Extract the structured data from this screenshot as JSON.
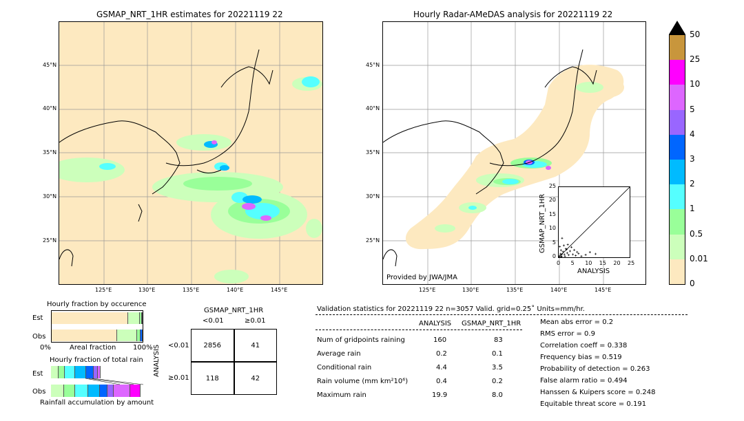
{
  "left_map": {
    "title": "GSMAP_NRT_1HR estimates for 20221119 22",
    "lat_ticks": [
      "45°N",
      "40°N",
      "35°N",
      "30°N",
      "25°N"
    ],
    "lon_ticks": [
      "125°E",
      "130°E",
      "135°E",
      "140°E",
      "145°E"
    ]
  },
  "right_map": {
    "title": "Hourly Radar-AMeDAS analysis for 20221119 22",
    "lat_ticks": [
      "45°N",
      "40°N",
      "35°N",
      "30°N",
      "25°N"
    ],
    "lon_ticks": [
      "125°E",
      "130°E",
      "135°E",
      "140°E",
      "145°E"
    ],
    "credit": "Provided by JWA/JMA"
  },
  "colorbar": {
    "labels": [
      "50",
      "25",
      "10",
      "5",
      "4",
      "3",
      "2",
      "1",
      "0.5",
      "0.01",
      "0"
    ],
    "colors": [
      "#c8963c",
      "#ff00ff",
      "#dd66ff",
      "#9966ff",
      "#0066ff",
      "#00bbff",
      "#55ffff",
      "#99ff99",
      "#ccffbb",
      "#fde9c0"
    ]
  },
  "scatter_inset": {
    "xlabel": "ANALYSIS",
    "ylabel": "GSMAP_NRT_1HR",
    "x_ticks": [
      "0",
      "5",
      "10",
      "15",
      "20",
      "25"
    ],
    "y_ticks": [
      "0",
      "5",
      "10",
      "15",
      "20",
      "25"
    ]
  },
  "chart_data": [
    {
      "type": "scatter",
      "xlabel": "ANALYSIS",
      "ylabel": "GSMAP_NRT_1HR",
      "xlim": [
        0,
        25
      ],
      "ylim": [
        0,
        25
      ],
      "points": [
        [
          0.3,
          0.5
        ],
        [
          0.6,
          1.2
        ],
        [
          1.0,
          0.4
        ],
        [
          1.5,
          2.0
        ],
        [
          2.0,
          1.0
        ],
        [
          2.5,
          3.0
        ],
        [
          0.8,
          2.5
        ],
        [
          1.2,
          6.8
        ],
        [
          3.0,
          1.5
        ],
        [
          3.5,
          0.8
        ],
        [
          4.0,
          2.2
        ],
        [
          5.0,
          1.0
        ],
        [
          6.0,
          0.6
        ],
        [
          0.4,
          3.8
        ],
        [
          1.8,
          4.2
        ],
        [
          7.0,
          1.3
        ],
        [
          8.0,
          0.4
        ],
        [
          9.5,
          0.9
        ],
        [
          2.8,
          2.8
        ],
        [
          4.5,
          3.6
        ],
        [
          1.1,
          1.1
        ],
        [
          0.2,
          0.2
        ],
        [
          3.2,
          4.5
        ],
        [
          11.0,
          1.8
        ],
        [
          13.0,
          1.2
        ],
        [
          5.5,
          2.6
        ],
        [
          6.5,
          1.9
        ],
        [
          0.9,
          0.1
        ],
        [
          2.2,
          0.3
        ]
      ]
    },
    {
      "type": "bar",
      "title": "Hourly fraction by occurence",
      "categories": [
        "Est",
        "Obs"
      ],
      "xlabel": "Areal fraction",
      "x_ticks": [
        "0%",
        "100%"
      ],
      "series": [
        {
          "values": [
            0.84,
            0.72
          ]
        },
        {
          "values": [
            0.13,
            0.22
          ]
        },
        {
          "values": [
            0.02,
            0.04
          ]
        },
        {
          "values": [
            0.01,
            0.02
          ]
        }
      ]
    },
    {
      "type": "bar",
      "title": "Hourly fraction of total rain",
      "categories": [
        "Est",
        "Obs"
      ],
      "xlabel": "Rainfall accumulation by amount",
      "series": [
        {
          "values": [
            0.08,
            0.14
          ]
        },
        {
          "values": [
            0.07,
            0.12
          ]
        },
        {
          "values": [
            0.11,
            0.14
          ]
        },
        {
          "values": [
            0.12,
            0.13
          ]
        },
        {
          "values": [
            0.08,
            0.08
          ]
        },
        {
          "values": [
            0.05,
            0.07
          ]
        },
        {
          "values": [
            0.03,
            0.18
          ]
        },
        {
          "values": [
            0.0,
            0.11
          ]
        }
      ]
    },
    {
      "type": "table",
      "title": "GSMAP_NRT_1HR",
      "col_labels": [
        "<0.01",
        "≥0.01"
      ],
      "row_labels": [
        "<0.01",
        "≥0.01"
      ],
      "row_axis": "ANALYSIS",
      "cells": [
        [
          "2856",
          "41"
        ],
        [
          "118",
          "42"
        ]
      ]
    }
  ],
  "contingency": {
    "title": "GSMAP_NRT_1HR",
    "col_labels": [
      "<0.01",
      "≥0.01"
    ],
    "row_axis": "ANALYSIS",
    "row_labels": [
      "<0.01",
      "≥0.01"
    ],
    "cells": [
      "2856",
      "41",
      "118",
      "42"
    ]
  },
  "occurrence": {
    "title": "Hourly fraction by occurence",
    "rows": [
      "Est",
      "Obs"
    ],
    "xlabel": "Areal fraction",
    "x_left": "0%",
    "x_right": "100%"
  },
  "total_rain": {
    "title": "Hourly fraction of total rain",
    "rows": [
      "Est",
      "Obs"
    ],
    "xlabel": "Rainfall accumulation by amount"
  },
  "validation": {
    "header": "Validation statistics for 20221119 22  n=3057 Valid. grid=0.25˚ Units=mm/hr.",
    "col1": "ANALYSIS",
    "col2": "GSMAP_NRT_1HR",
    "rows": [
      {
        "label": "Num of gridpoints raining",
        "a": "160",
        "g": "83"
      },
      {
        "label": "Average rain",
        "a": "0.2",
        "g": "0.1"
      },
      {
        "label": "Conditional rain",
        "a": "4.4",
        "g": "3.5"
      },
      {
        "label": "Rain volume (mm km²10⁶)",
        "a": "0.4",
        "g": "0.2"
      },
      {
        "label": "Maximum rain",
        "a": "19.9",
        "g": "8.0"
      }
    ],
    "scores": [
      "Mean abs error =    0.2",
      "RMS error =    0.9",
      "Correlation coeff =  0.338",
      "Frequency bias =  0.519",
      "Probability of detection =  0.263",
      "False alarm ratio =  0.494",
      "Hanssen & Kuipers score =  0.248",
      "Equitable threat score =  0.191"
    ]
  }
}
